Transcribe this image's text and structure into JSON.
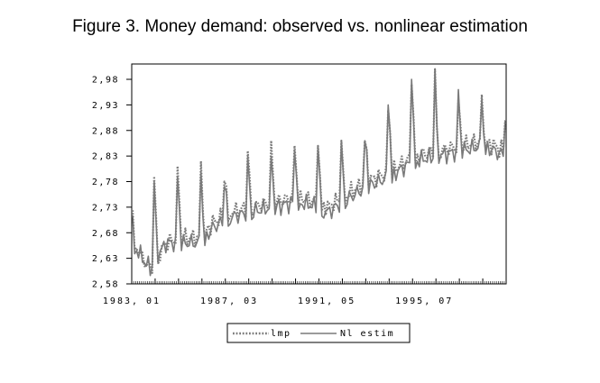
{
  "chart_data": {
    "type": "line",
    "title": "Figure 3. Money demand: observed vs. nonlinear estimation",
    "xlabel": "",
    "ylabel": "",
    "x_ticks": [
      "1983,01",
      "1987,03",
      "1991,05",
      "1995,07"
    ],
    "x_range": [
      "1983-01",
      "1998-12"
    ],
    "y_ticks": [
      "2,58",
      "2,63",
      "2,68",
      "2,73",
      "2,78",
      "2,83",
      "2,88",
      "2,93",
      "2,98"
    ],
    "ylim": [
      2.58,
      3.01
    ],
    "grid": false,
    "legend_position": "bottom-center",
    "series": [
      {
        "name": "lmp",
        "style": "dotted",
        "color": "#7a7a7a",
        "annual_spikes": [
          2.79,
          2.81,
          2.82,
          2.78,
          2.84,
          2.86,
          2.85,
          2.85,
          2.86,
          2.86,
          2.92,
          2.97,
          3.0,
          2.94,
          2.95,
          2.9
        ],
        "baseline": [
          {
            "month": "1983-01",
            "value": 2.67
          },
          {
            "month": "1983-06",
            "value": 2.63
          },
          {
            "month": "1983-10",
            "value": 2.61
          },
          {
            "month": "1984-06",
            "value": 2.66
          },
          {
            "month": "1984-12",
            "value": 2.67
          },
          {
            "month": "1985-12",
            "value": 2.67
          },
          {
            "month": "1986-06",
            "value": 2.7
          },
          {
            "month": "1987-03",
            "value": 2.72
          },
          {
            "month": "1988-01",
            "value": 2.73
          },
          {
            "month": "1989-01",
            "value": 2.74
          },
          {
            "month": "1990-01",
            "value": 2.75
          },
          {
            "month": "1991-01",
            "value": 2.74
          },
          {
            "month": "1991-05",
            "value": 2.73
          },
          {
            "month": "1992-01",
            "value": 2.75
          },
          {
            "month": "1993-01",
            "value": 2.78
          },
          {
            "month": "1994-01",
            "value": 2.8
          },
          {
            "month": "1995-01",
            "value": 2.83
          },
          {
            "month": "1996-01",
            "value": 2.84
          },
          {
            "month": "1997-01",
            "value": 2.85
          },
          {
            "month": "1998-01",
            "value": 2.86
          },
          {
            "month": "1998-12",
            "value": 2.84
          }
        ]
      },
      {
        "name": "Nl estim",
        "style": "solid",
        "color": "#7a7a7a",
        "annual_spikes": [
          2.78,
          2.79,
          2.8,
          2.77,
          2.83,
          2.83,
          2.84,
          2.85,
          2.86,
          2.86,
          2.93,
          2.98,
          3.0,
          2.96,
          2.94,
          2.9
        ],
        "baseline": [
          {
            "month": "1983-01",
            "value": 2.66
          },
          {
            "month": "1983-06",
            "value": 2.63
          },
          {
            "month": "1983-10",
            "value": 2.61
          },
          {
            "month": "1984-06",
            "value": 2.66
          },
          {
            "month": "1984-12",
            "value": 2.66
          },
          {
            "month": "1985-12",
            "value": 2.66
          },
          {
            "month": "1986-06",
            "value": 2.69
          },
          {
            "month": "1987-03",
            "value": 2.71
          },
          {
            "month": "1988-01",
            "value": 2.72
          },
          {
            "month": "1989-01",
            "value": 2.73
          },
          {
            "month": "1990-01",
            "value": 2.74
          },
          {
            "month": "1991-01",
            "value": 2.73
          },
          {
            "month": "1991-05",
            "value": 2.72
          },
          {
            "month": "1992-01",
            "value": 2.74
          },
          {
            "month": "1993-01",
            "value": 2.77
          },
          {
            "month": "1994-01",
            "value": 2.79
          },
          {
            "month": "1995-01",
            "value": 2.82
          },
          {
            "month": "1996-01",
            "value": 2.83
          },
          {
            "month": "1997-01",
            "value": 2.84
          },
          {
            "month": "1998-01",
            "value": 2.85
          },
          {
            "month": "1998-12",
            "value": 2.83
          }
        ]
      }
    ]
  }
}
